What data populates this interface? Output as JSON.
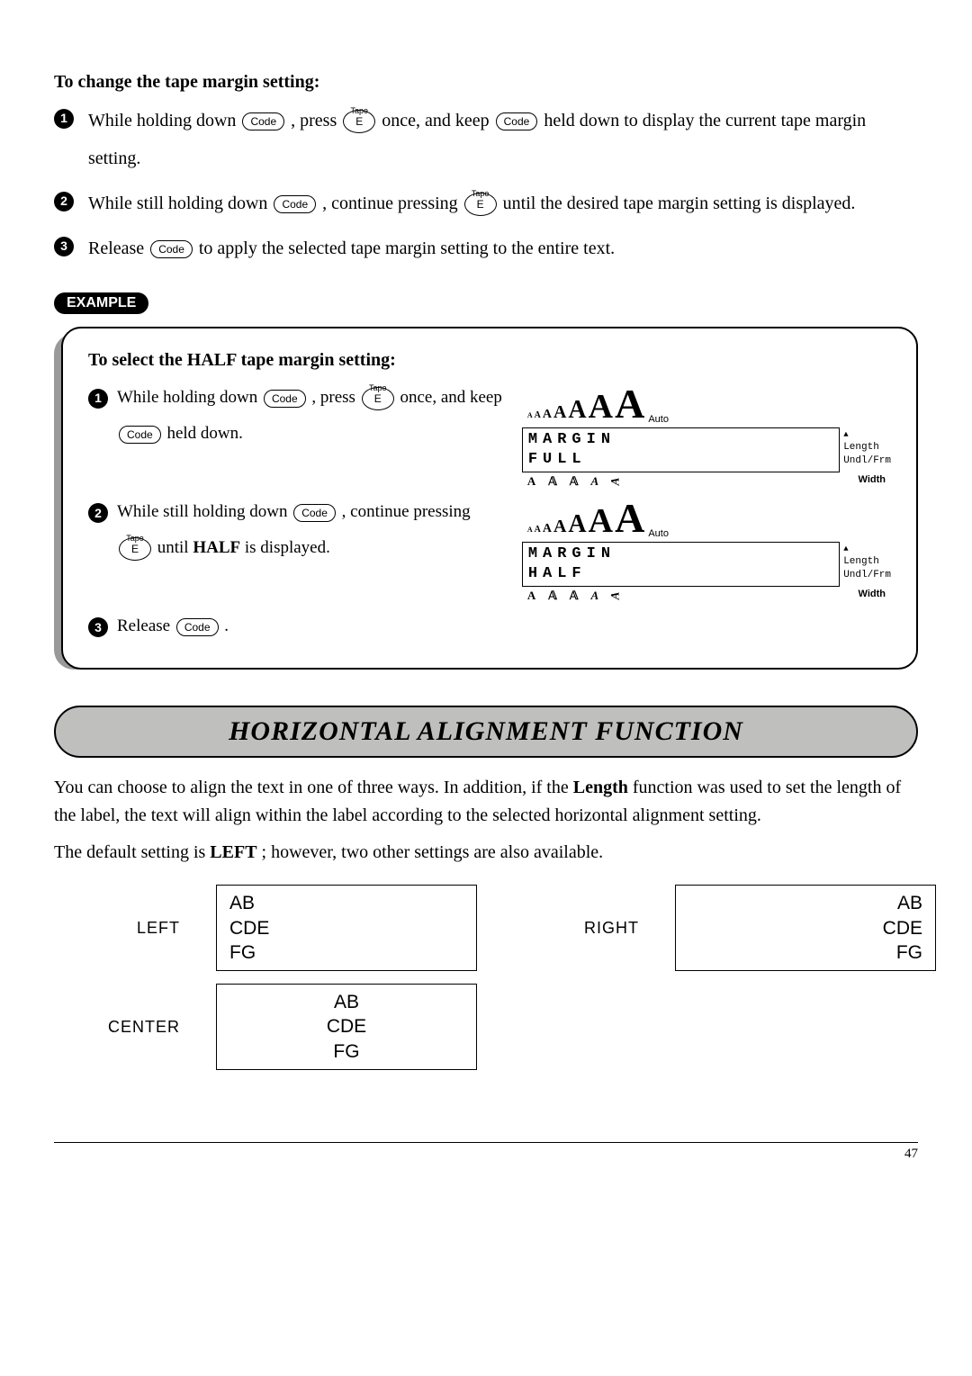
{
  "sectionA": {
    "heading": "To change the tape margin setting:",
    "steps": [
      {
        "n": "1",
        "pre": "While holding down ",
        "k1": "Code",
        "mid1": ", press ",
        "k2": "E",
        "k2top": "Tape",
        "mid2": " once, and keep ",
        "k3": "Code",
        "post": " held down to display the current tape margin setting."
      },
      {
        "n": "2",
        "pre": "While still holding down ",
        "k1": "Code",
        "mid1": ", continue pressing ",
        "k2": "E",
        "k2top": "Tape",
        "post": " until the desired tape margin setting is displayed."
      },
      {
        "n": "3",
        "pre": "Release ",
        "k1": "Code",
        "post": " to apply the selected tape margin setting to the entire text."
      }
    ]
  },
  "exampleLabel": "EXAMPLE",
  "example": {
    "heading": "To select the HALF tape margin setting:",
    "rows": [
      {
        "n": "1",
        "text_pre": "While holding down ",
        "k1": "Code",
        "text_mid1": ", press ",
        "k2": "E",
        "k2top": "Tape",
        "text_mid2": " once, and keep ",
        "k3": "Code",
        "text_post": " held down.",
        "lcd_line1": "MARGIN",
        "lcd_line2": "FULL"
      },
      {
        "n": "2",
        "text_pre": "While still holding down ",
        "k1": "Code",
        "text_mid1": ", continue pressing ",
        "k2": "E",
        "k2top": "Tape",
        "text_mid2": " until ",
        "bold": "HALF",
        "text_post": " is displayed.",
        "lcd_line1": "MARGIN",
        "lcd_line2": "HALF"
      },
      {
        "n": "3",
        "text_pre": "Release ",
        "k1": "Code",
        "text_post": "."
      }
    ]
  },
  "lcdCommon": {
    "sizes_glyph": "A",
    "auto": "Auto",
    "right1": "Length",
    "right2": "Undl/Frm",
    "bot_styles": [
      "A",
      "𝔸",
      "𝔸",
      "A",
      "A"
    ],
    "width": "Width"
  },
  "func": {
    "title": "HORIZONTAL ALIGNMENT FUNCTION",
    "p1_pre": "You can choose to align the text in one of three ways. In addition, if the ",
    "p1_bold": "Length",
    "p1_post": " function was used to set the length of the label, the text will align within the label according to the selected horizontal alignment setting.",
    "p2_pre": "The default setting is ",
    "p2_bold": "LEFT",
    "p2_post": "; however, two other settings are also available."
  },
  "align": {
    "left": "LEFT",
    "right": "RIGHT",
    "center": "CENTER",
    "lines": [
      "AB",
      "CDE",
      "FG"
    ]
  },
  "pageNumber": "47"
}
